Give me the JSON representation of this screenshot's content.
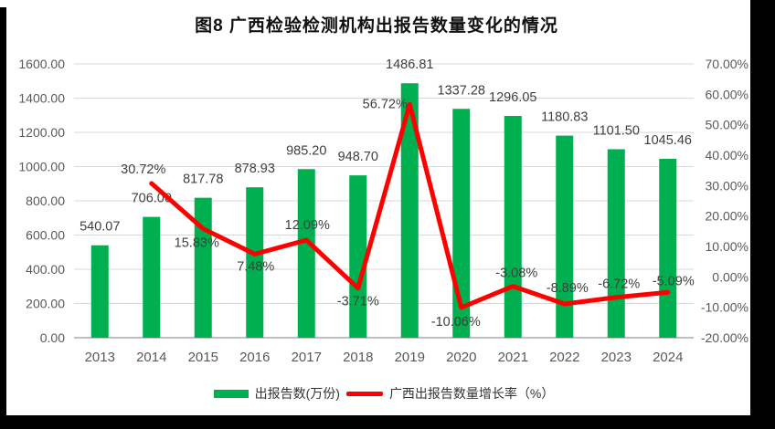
{
  "chart_data": {
    "type": "bar+line combo",
    "title": "图8  广西检验检测机构出报告数量变化的情况",
    "categories": [
      "2013",
      "2014",
      "2015",
      "2016",
      "2017",
      "2018",
      "2019",
      "2020",
      "2021",
      "2022",
      "2023",
      "2024"
    ],
    "series": [
      {
        "name": "出报告数(万份)",
        "type": "bar",
        "axis": "left",
        "color": "#00B050",
        "values": [
          540.07,
          706.0,
          817.78,
          878.93,
          985.2,
          948.7,
          1486.81,
          1337.28,
          1296.05,
          1180.83,
          1101.5,
          1045.46
        ],
        "labels": [
          "540.07",
          "706.00",
          "817.78",
          "878.93",
          "985.20",
          "948.70",
          "1486.81",
          "1337.28",
          "1296.05",
          "1180.83",
          "1101.50",
          "1045.46"
        ]
      },
      {
        "name": "广西出报告数量增长率（%）",
        "type": "line",
        "axis": "right",
        "color": "#FF0000",
        "starts_at_category": "2014",
        "values": [
          30.72,
          15.83,
          7.48,
          12.09,
          -3.71,
          56.72,
          -10.06,
          -3.08,
          -8.89,
          -6.72,
          -5.09
        ],
        "labels": [
          "30.72%",
          "15.83%",
          "7.48%",
          "12.09%",
          "-3.71%",
          "56.72%",
          "-10.06%",
          "-3.08%",
          "-8.89%",
          "-6.72%",
          "-5.09%"
        ]
      }
    ],
    "axes": {
      "left": {
        "min": 0,
        "max": 1600,
        "step": 200,
        "tick_labels": [
          "1600.00",
          "1400.00",
          "1200.00",
          "1000.00",
          "800.00",
          "600.00",
          "400.00",
          "200.00",
          "0.00"
        ]
      },
      "right": {
        "min": -20,
        "max": 70,
        "step": 10,
        "tick_labels": [
          "70.00%",
          "60.00%",
          "50.00%",
          "40.00%",
          "30.00%",
          "20.00%",
          "10.00%",
          "0.00%",
          "-10.00%",
          "-20.00%"
        ]
      }
    },
    "grid": "horizontal",
    "legend_position": "bottom"
  },
  "colors": {
    "bar": "#00B050",
    "line": "#FF0000",
    "gridline": "#D9D9D9",
    "axis_line": "#C0C0C0",
    "axis_text": "#595959",
    "data_label_text": "#3F3F3F",
    "title_text": "#111111",
    "screen_edge": "#000000"
  }
}
